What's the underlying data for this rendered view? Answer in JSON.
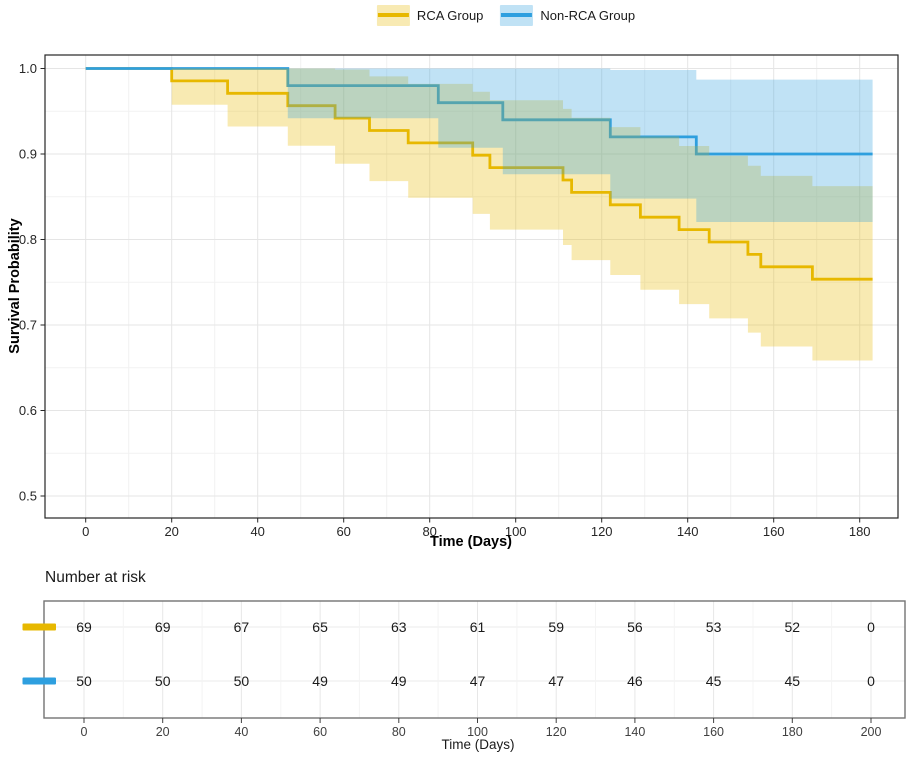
{
  "legend": {
    "items": [
      {
        "label": "RCA Group",
        "line_color": "#E7B800",
        "band_bg": "#F8EAB3"
      },
      {
        "label": "Non-RCA Group",
        "line_color": "#2E9FDF",
        "band_bg": "#C0E2F5"
      }
    ]
  },
  "chart_data": {
    "type": "line",
    "subtype": "kaplan-meier-step-with-ci",
    "title": "",
    "xlabel": "Time (Days)",
    "ylabel": "Survival Probability",
    "xlim": [
      -10,
      189
    ],
    "ylim": [
      0.474,
      1.016
    ],
    "x_ticks": [
      0,
      20,
      40,
      60,
      80,
      100,
      120,
      140,
      160,
      180
    ],
    "y_ticks": [
      1.0,
      0.9,
      0.8,
      0.7,
      0.6,
      0.5
    ],
    "grid": true,
    "legend_position": "top",
    "end_day": 183,
    "series": [
      {
        "name": "RCA Group",
        "color": "#E7B800",
        "band_opacity": 0.3,
        "steps": [
          [
            0,
            1.0
          ],
          [
            20,
            0.9855
          ],
          [
            33,
            0.971
          ],
          [
            47,
            0.9565
          ],
          [
            58,
            0.942
          ],
          [
            66,
            0.9275
          ],
          [
            75,
            0.913
          ],
          [
            90,
            0.8986
          ],
          [
            94,
            0.8841
          ],
          [
            111,
            0.8696
          ],
          [
            113,
            0.8551
          ],
          [
            122,
            0.8406
          ],
          [
            129,
            0.8261
          ],
          [
            138,
            0.8116
          ],
          [
            145,
            0.7971
          ],
          [
            154,
            0.7826
          ],
          [
            157,
            0.7681
          ],
          [
            169,
            0.7536
          ]
        ],
        "ci_upper": [
          [
            20,
            1.0
          ],
          [
            58,
            0.9988
          ],
          [
            66,
            0.9908
          ],
          [
            75,
            0.982
          ],
          [
            90,
            0.9727
          ],
          [
            94,
            0.9629
          ],
          [
            111,
            0.9528
          ],
          [
            113,
            0.9423
          ],
          [
            122,
            0.9315
          ],
          [
            129,
            0.9205
          ],
          [
            138,
            0.9093
          ],
          [
            145,
            0.8979
          ],
          [
            154,
            0.8862
          ],
          [
            157,
            0.8744
          ],
          [
            169,
            0.8625
          ]
        ],
        "ci_lower": [
          [
            20,
            0.9577
          ],
          [
            33,
            0.9322
          ],
          [
            47,
            0.9096
          ],
          [
            58,
            0.8885
          ],
          [
            66,
            0.8683
          ],
          [
            75,
            0.8489
          ],
          [
            90,
            0.83
          ],
          [
            94,
            0.8116
          ],
          [
            111,
            0.7936
          ],
          [
            113,
            0.7759
          ],
          [
            122,
            0.7585
          ],
          [
            129,
            0.7413
          ],
          [
            138,
            0.7244
          ],
          [
            145,
            0.7077
          ],
          [
            154,
            0.6911
          ],
          [
            157,
            0.6748
          ],
          [
            169,
            0.6585
          ]
        ]
      },
      {
        "name": "Non-RCA Group",
        "color": "#2E9FDF",
        "band_opacity": 0.3,
        "steps": [
          [
            0,
            1.0
          ],
          [
            47,
            0.98
          ],
          [
            82,
            0.96
          ],
          [
            97,
            0.94
          ],
          [
            122,
            0.92
          ],
          [
            142,
            0.9
          ]
        ],
        "ci_upper": [
          [
            47,
            1.0
          ],
          [
            122,
            0.9983
          ],
          [
            142,
            0.987
          ]
        ],
        "ci_lower": [
          [
            47,
            0.9419
          ],
          [
            82,
            0.9072
          ],
          [
            97,
            0.8764
          ],
          [
            122,
            0.8478
          ],
          [
            142,
            0.8205
          ]
        ]
      }
    ],
    "risk_table": {
      "title": "Number at risk",
      "xlabel": "Time (Days)",
      "times": [
        0,
        20,
        40,
        60,
        80,
        100,
        120,
        140,
        160,
        180,
        200
      ],
      "rows": [
        {
          "name": "RCA Group",
          "color": "#E7B800",
          "counts": [
            69,
            69,
            67,
            65,
            63,
            61,
            59,
            56,
            53,
            52,
            0
          ]
        },
        {
          "name": "Non-RCA Group",
          "color": "#2E9FDF",
          "counts": [
            50,
            50,
            50,
            49,
            49,
            47,
            47,
            46,
            45,
            45,
            0
          ]
        }
      ]
    }
  }
}
